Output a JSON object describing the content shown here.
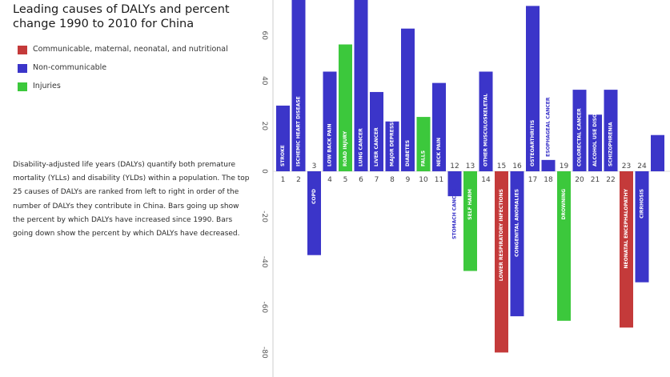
{
  "title": "Leading causes of DALYs and percent change 1990 to 2010 for China",
  "legend": [
    {
      "label": "Communicable, maternal, neonatal, and nutritional",
      "color": "#c43a3a"
    },
    {
      "label": "Non-communicable",
      "color": "#3b35c9"
    },
    {
      "label": "Injuries",
      "color": "#3cc83c"
    }
  ],
  "description": "Disability-adjusted life years (DALYs) quantify both premature mortality (YLLs) and disability (YLDs) within a population. The top 25 causes of DALYs are ranked from left to right in order of the number of DALYs they contribute in China. Bars going up show the percent by which DALYs have increased since 1990. Bars going down show the percent by which DALYs have decreased.",
  "chart_data": {
    "type": "bar",
    "ylim": [
      -90,
      75
    ],
    "yticks": [
      60,
      40,
      20,
      0,
      -20,
      -40,
      -60,
      -80
    ],
    "ytick_labels": [
      "60",
      "40",
      "20",
      "0",
      "-20",
      "-40",
      "-60",
      "-80"
    ],
    "grid": false,
    "bars": [
      {
        "rank": "1",
        "label": "STROKE",
        "value": 29,
        "group": "Non-communicable"
      },
      {
        "rank": "2",
        "label": "ISCHEMIC HEART DISEASE",
        "value": 80,
        "group": "Non-communicable"
      },
      {
        "rank": "3",
        "label": "COPD",
        "value": -37,
        "group": "Non-communicable"
      },
      {
        "rank": "4",
        "label": "LOW BACK PAIN",
        "value": 44,
        "group": "Non-communicable"
      },
      {
        "rank": "5",
        "label": "ROAD INJURY",
        "value": 56,
        "group": "Injuries"
      },
      {
        "rank": "6",
        "label": "LUNG CANCER",
        "value": 80,
        "group": "Non-communicable"
      },
      {
        "rank": "7",
        "label": "LIVER CANCER",
        "value": 35,
        "group": "Non-communicable"
      },
      {
        "rank": "8",
        "label": "MAJOR DEPRESSIVE DISORDER",
        "value": 22,
        "group": "Non-communicable"
      },
      {
        "rank": "9",
        "label": "DIABETES",
        "value": 63,
        "group": "Non-communicable"
      },
      {
        "rank": "10",
        "label": "FALLS",
        "value": 24,
        "group": "Injuries"
      },
      {
        "rank": "11",
        "label": "NECK PAIN",
        "value": 39,
        "group": "Non-communicable"
      },
      {
        "rank": "12",
        "label": "STOMACH CANCER",
        "value": -11,
        "group": "Non-communicable"
      },
      {
        "rank": "13",
        "label": "SELF HARM",
        "value": -44,
        "group": "Injuries"
      },
      {
        "rank": "14",
        "label": "OTHER MUSCULOSKELETAL",
        "value": 44,
        "group": "Non-communicable"
      },
      {
        "rank": "15",
        "label": "LOWER RESPIRATORY INFECTIONS",
        "value": -80,
        "group": "Communicable, maternal, neonatal, and nutritional"
      },
      {
        "rank": "16",
        "label": "CONGENITAL ANOMALIES",
        "value": -64,
        "group": "Non-communicable"
      },
      {
        "rank": "17",
        "label": "OSTEOARTHRITIS",
        "value": 73,
        "group": "Non-communicable"
      },
      {
        "rank": "18",
        "label": "ESOPHAGEAL CANCER",
        "value": 5,
        "group": "Non-communicable"
      },
      {
        "rank": "19",
        "label": "DROWNING",
        "value": -66,
        "group": "Injuries"
      },
      {
        "rank": "20",
        "label": "COLORECTAL CANCER",
        "value": 36,
        "group": "Non-communicable"
      },
      {
        "rank": "21",
        "label": "ALCOHOL USE DISORDERS",
        "value": 25,
        "group": "Non-communicable"
      },
      {
        "rank": "22",
        "label": "SCHIZOPHRENIA",
        "value": 36,
        "group": "Non-communicable"
      },
      {
        "rank": "23",
        "label": "NEONATAL ENCEPHALOPATHY",
        "value": -69,
        "group": "Communicable, maternal, neonatal, and nutritional"
      },
      {
        "rank": "24",
        "label": "CIRRHOSIS",
        "value": -49,
        "group": "Non-communicable"
      },
      {
        "rank": "",
        "label": "",
        "value": 16,
        "group": "Non-communicable"
      }
    ]
  }
}
